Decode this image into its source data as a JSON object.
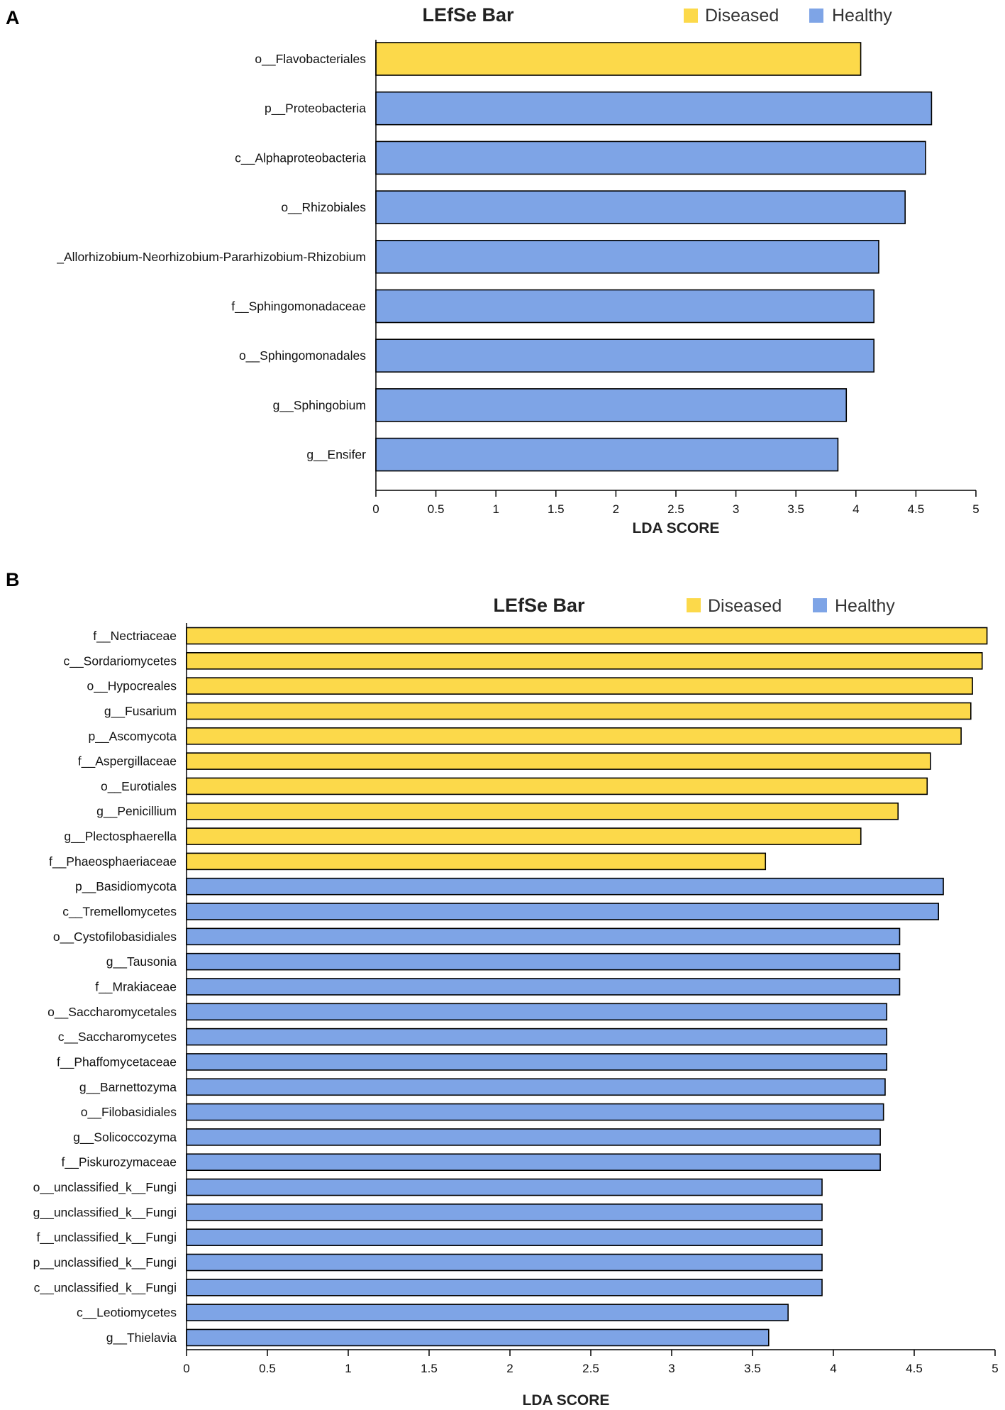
{
  "colors": {
    "Diseased": "#fcd94a",
    "Healthy": "#7ea4e6"
  },
  "chart_data": [
    {
      "panel": "A",
      "type": "bar",
      "orientation": "horizontal",
      "title": "LEfSe Bar",
      "legend": [
        "Diseased",
        "Healthy"
      ],
      "xlabel": "LDA SCORE",
      "ylabel": "",
      "xlim": [
        0,
        5
      ],
      "xticks": [
        "0",
        "0.5",
        "1",
        "1.5",
        "2",
        "2.5",
        "3",
        "3.5",
        "4",
        "4.5",
        "5"
      ],
      "categories": [
        "o__Flavobacteriales",
        "p__Proteobacteria",
        "c__Alphaproteobacteria",
        "o__Rhizobiales",
        "_Allorhizobium-Neorhizobium-Pararhizobium-Rhizobium",
        "f__Sphingomonadaceae",
        "o__Sphingomonadales",
        "g__Sphingobium",
        "g__Ensifer"
      ],
      "values": [
        4.04,
        4.63,
        4.58,
        4.41,
        4.19,
        4.15,
        4.15,
        3.92,
        3.85
      ],
      "groups": [
        "Diseased",
        "Healthy",
        "Healthy",
        "Healthy",
        "Healthy",
        "Healthy",
        "Healthy",
        "Healthy",
        "Healthy"
      ]
    },
    {
      "panel": "B",
      "type": "bar",
      "orientation": "horizontal",
      "title": "LEfSe Bar",
      "legend": [
        "Diseased",
        "Healthy"
      ],
      "xlabel": "LDA SCORE",
      "ylabel": "",
      "xlim": [
        0,
        5
      ],
      "xticks": [
        "0",
        "0.5",
        "1",
        "1.5",
        "2",
        "2.5",
        "3",
        "3.5",
        "4",
        "4.5",
        "5"
      ],
      "categories": [
        "f__Nectriaceae",
        "c__Sordariomycetes",
        "o__Hypocreales",
        "g__Fusarium",
        "p__Ascomycota",
        "f__Aspergillaceae",
        "o__Eurotiales",
        "g__Penicillium",
        "g__Plectosphaerella",
        "f__Phaeosphaeriaceae",
        "p__Basidiomycota",
        "c__Tremellomycetes",
        "o__Cystofilobasidiales",
        "g__Tausonia",
        "f__Mrakiaceae",
        "o__Saccharomycetales",
        "c__Saccharomycetes",
        "f__Phaffomycetaceae",
        "g__Barnettozyma",
        "o__Filobasidiales",
        "g__Solicoccozyma",
        "f__Piskurozymaceae",
        "o__unclassified_k__Fungi",
        "g__unclassified_k__Fungi",
        "f__unclassified_k__Fungi",
        "p__unclassified_k__Fungi",
        "c__unclassified_k__Fungi",
        "c__Leotiomycetes",
        "g__Thielavia"
      ],
      "values": [
        4.95,
        4.92,
        4.86,
        4.85,
        4.79,
        4.6,
        4.58,
        4.4,
        4.17,
        3.58,
        4.68,
        4.65,
        4.41,
        4.41,
        4.41,
        4.33,
        4.33,
        4.33,
        4.32,
        4.31,
        4.29,
        4.29,
        3.93,
        3.93,
        3.93,
        3.93,
        3.93,
        3.72,
        3.6
      ],
      "groups": [
        "Diseased",
        "Diseased",
        "Diseased",
        "Diseased",
        "Diseased",
        "Diseased",
        "Diseased",
        "Diseased",
        "Diseased",
        "Diseased",
        "Healthy",
        "Healthy",
        "Healthy",
        "Healthy",
        "Healthy",
        "Healthy",
        "Healthy",
        "Healthy",
        "Healthy",
        "Healthy",
        "Healthy",
        "Healthy",
        "Healthy",
        "Healthy",
        "Healthy",
        "Healthy",
        "Healthy",
        "Healthy",
        "Healthy"
      ]
    }
  ]
}
